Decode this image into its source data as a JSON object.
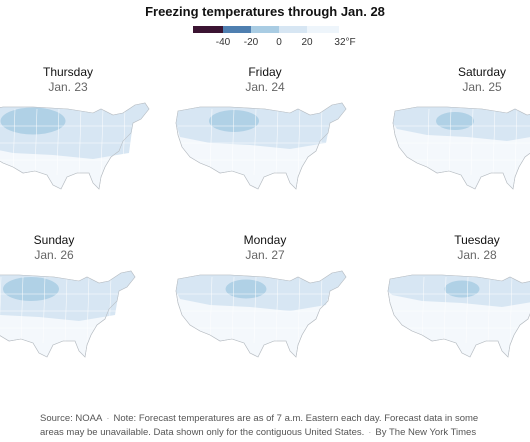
{
  "title": "Freezing temperatures through Jan. 28",
  "legend": {
    "ticks": [
      "-40",
      "-20",
      "0",
      "20",
      "32°F"
    ],
    "colors": [
      "#3b1432",
      "#4f7fb0",
      "#a9cce3",
      "#d7e6f3",
      "#eef5fb"
    ]
  },
  "panels": [
    {
      "day": "Thursday",
      "date": "Jan. 23",
      "cold_level": 0.75
    },
    {
      "day": "Friday",
      "date": "Jan. 24",
      "cold_level": 0.5
    },
    {
      "day": "Saturday",
      "date": "Jan. 25",
      "cold_level": 0.3
    },
    {
      "day": "Sunday",
      "date": "Jan. 26",
      "cold_level": 0.6
    },
    {
      "day": "Monday",
      "date": "Jan. 27",
      "cold_level": 0.35
    },
    {
      "day": "Tuesday",
      "date": "Jan. 28",
      "cold_level": 0.25
    }
  ],
  "footer": {
    "source": "Source: NOAA",
    "note": "Note: Forecast temperatures are as of 7 a.m. Eastern each day. Forecast data in some areas may be unavailable. Data shown only for the contiguous United States.",
    "credit": "By The New York Times"
  }
}
